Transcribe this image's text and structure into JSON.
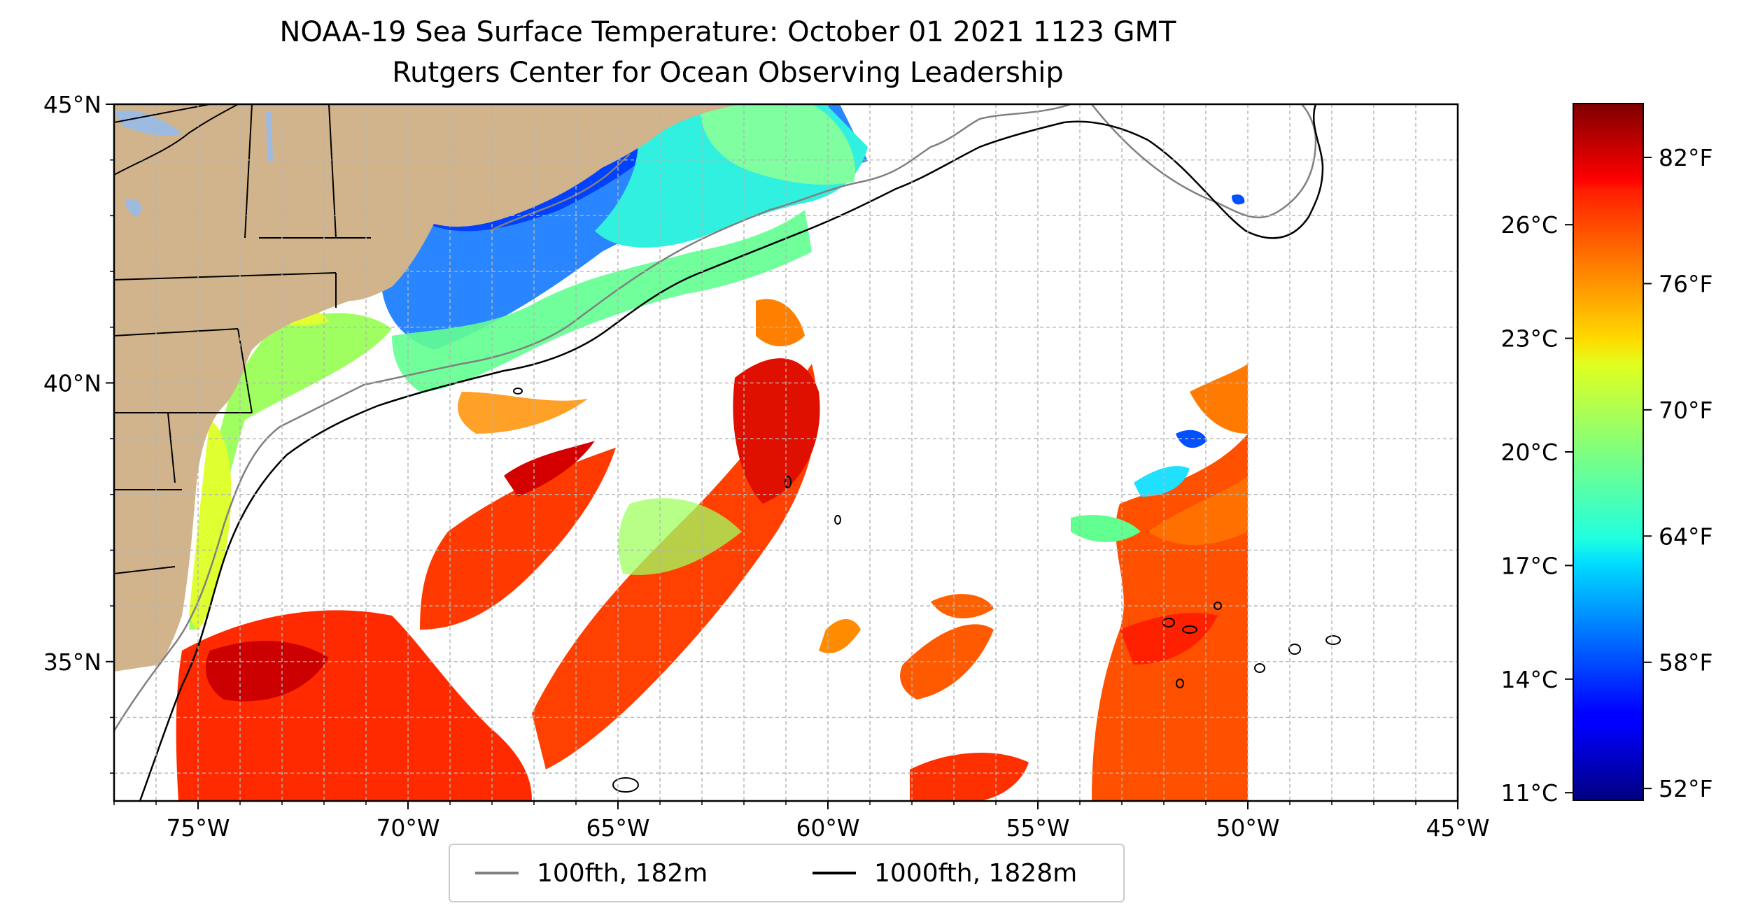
{
  "title": {
    "line1": "NOAA-19 Sea Surface Temperature: October 01 2021 1123 GMT",
    "line2": "Rutgers Center for Ocean Observing Leadership"
  },
  "map": {
    "lon_range": [
      -77,
      -45
    ],
    "lat_range": [
      32.5,
      45
    ],
    "lon_ticks": [
      -75,
      -70,
      -65,
      -60,
      -55,
      -50,
      -45
    ],
    "lon_tick_labels": [
      "75°W",
      "70°W",
      "65°W",
      "60°W",
      "55°W",
      "50°W",
      "45°W"
    ],
    "lat_ticks": [
      35,
      40,
      45
    ],
    "lat_tick_labels": [
      "35°N",
      "40°N",
      "45°N"
    ],
    "gridlines": true,
    "colors": {
      "land": "#d2b48c",
      "lakes": "#9dbbe0",
      "contour_100fth": "#808080",
      "contour_1000fth": "#000000",
      "grid": "#b5b5b5"
    }
  },
  "legend": {
    "placement": "below-map",
    "items": [
      {
        "label": "100fth, 182m",
        "color": "#808080"
      },
      {
        "label": "1000fth, 1828m",
        "color": "#000000"
      }
    ]
  },
  "colorbar": {
    "colormap": "jet",
    "range_c": [
      10.8,
      29.2
    ],
    "celsius_ticks": [
      11,
      14,
      17,
      20,
      23,
      26
    ],
    "celsius_labels": [
      "11°C",
      "14°C",
      "17°C",
      "20°C",
      "23°C",
      "26°C"
    ],
    "fahrenheit_ticks": [
      52,
      58,
      64,
      70,
      76,
      82
    ],
    "fahrenheit_labels": [
      "52°F",
      "58°F",
      "64°F",
      "70°F",
      "76°F",
      "82°F"
    ]
  }
}
